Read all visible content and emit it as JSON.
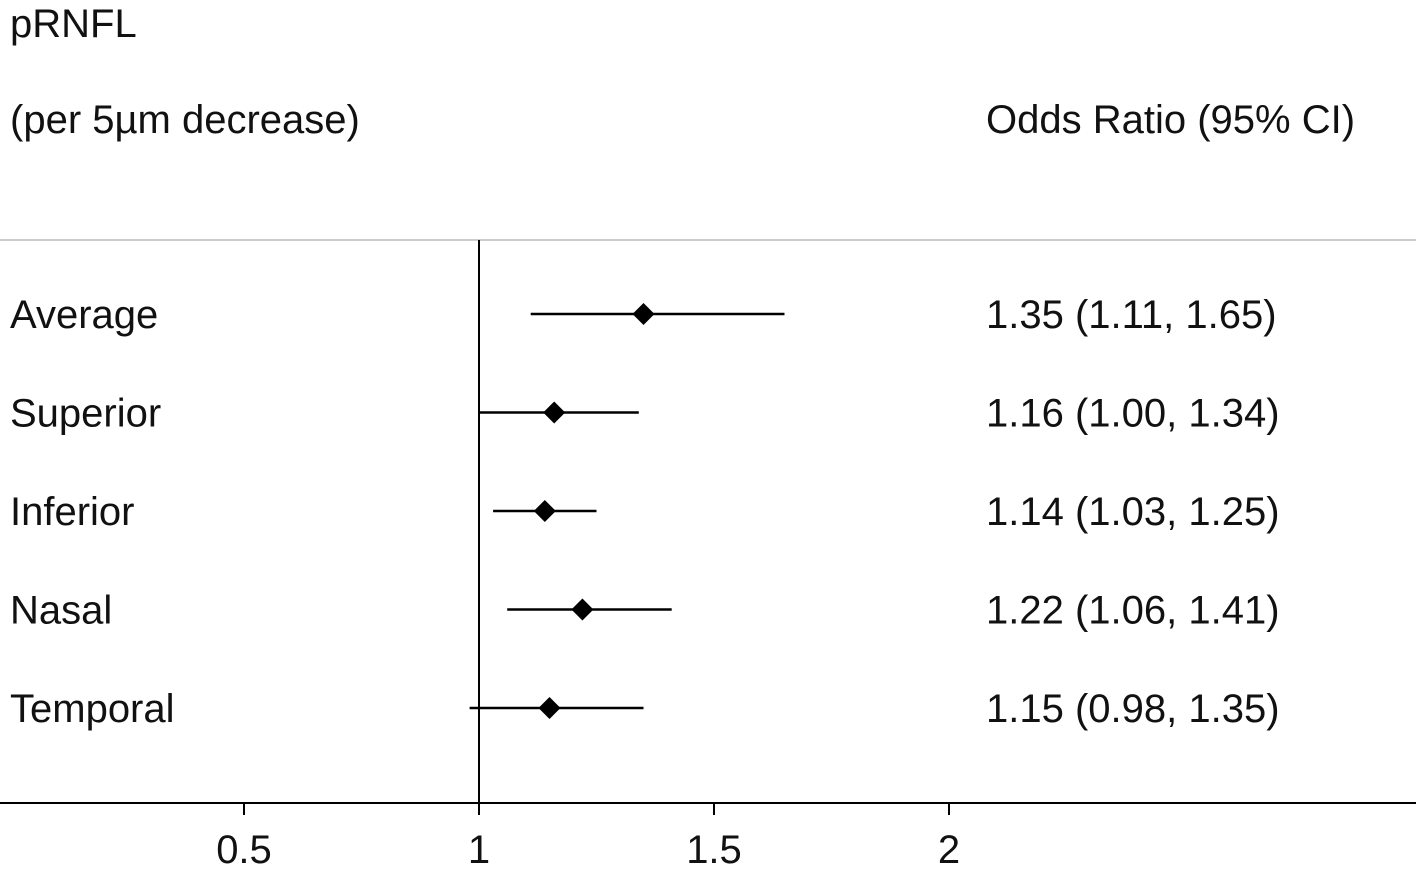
{
  "header": {
    "title_line1": "pRNFL",
    "title_line2": "(per 5µm decrease)",
    "or_column_header": "Odds Ratio (95% CI)"
  },
  "chart_data": {
    "type": "forest",
    "reference_line": 1,
    "xlim": [
      0,
      2.9
    ],
    "xticks": [
      0.5,
      1,
      1.5,
      2
    ],
    "xtick_labels": [
      "0.5",
      "1",
      "1.5",
      "2"
    ],
    "rows": [
      {
        "label": "Average",
        "or": 1.35,
        "lower": 1.11,
        "upper": 1.65,
        "text": "1.35 (1.11, 1.65)"
      },
      {
        "label": "Superior",
        "or": 1.16,
        "lower": 1.0,
        "upper": 1.34,
        "text": "1.16 (1.00, 1.34)"
      },
      {
        "label": "Inferior",
        "or": 1.14,
        "lower": 1.03,
        "upper": 1.25,
        "text": "1.14 (1.03, 1.25)"
      },
      {
        "label": "Nasal",
        "or": 1.22,
        "lower": 1.06,
        "upper": 1.41,
        "text": "1.22 (1.06, 1.41)"
      },
      {
        "label": "Temporal",
        "or": 1.15,
        "lower": 0.98,
        "upper": 1.35,
        "text": "1.15 (0.98, 1.35)"
      }
    ],
    "marker": "diamond",
    "colors": {
      "marker": "#000000",
      "line": "#000000",
      "top_rule": "#cccccc"
    }
  }
}
